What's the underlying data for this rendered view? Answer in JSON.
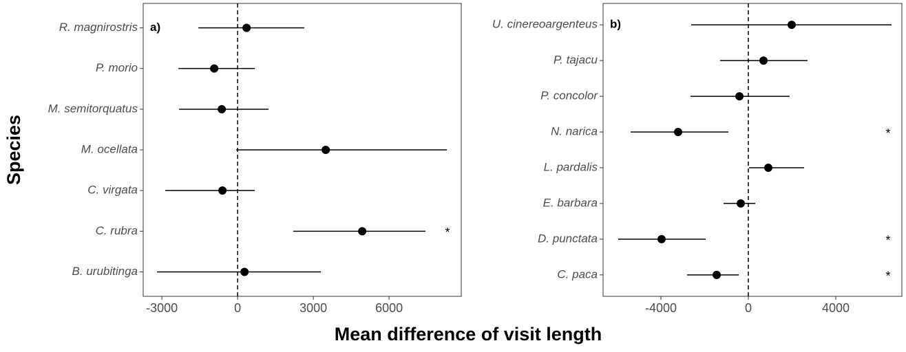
{
  "figure": {
    "x_label": "Mean difference of visit length",
    "y_label": "Species"
  },
  "chart_data": [
    {
      "type": "forest",
      "panel_label": "a)",
      "categories": [
        "R. magnirostris",
        "P. morio",
        "M. semitorquatus",
        "M. ocellata",
        "C. virgata",
        "C. rubra",
        "B. urubitinga"
      ],
      "values": [
        355,
        -927,
        -627,
        3491,
        -600,
        4936,
        273
      ],
      "lower": [
        -1555,
        -2345,
        -2318,
        -55,
        -2864,
        2209,
        -3191
      ],
      "upper": [
        2645,
        682,
        1227,
        8291,
        682,
        7445,
        3300
      ],
      "significance": [
        null,
        null,
        null,
        null,
        null,
        "*",
        null
      ],
      "xlim": [
        -3740,
        8860
      ],
      "xticks": [
        -3000,
        0,
        3000,
        6000
      ],
      "reference_line": 0,
      "color": "#000000"
    },
    {
      "type": "forest",
      "panel_label": "b)",
      "categories": [
        "U. cinereoargenteus",
        "P. tajacu",
        "P. concolor",
        "N. narica",
        "L. pardalis",
        "E. barbara",
        "D. punctata",
        "C. paca"
      ],
      "values": [
        1984,
        693,
        -409,
        -3213,
        913,
        -346,
        -3969,
        -1449
      ],
      "lower": [
        -2614,
        -1291,
        -2646,
        -5386,
        31,
        -1134,
        -5953,
        -2803
      ],
      "upper": [
        6551,
        2709,
        1890,
        -913,
        2551,
        315,
        -1953,
        -441
      ],
      "significance": [
        null,
        null,
        null,
        "*",
        null,
        null,
        "*",
        "*"
      ],
      "xlim": [
        -6646,
        7024
      ],
      "xticks": [
        -4000,
        0,
        4000
      ],
      "reference_line": 0,
      "color": "#000000"
    }
  ]
}
